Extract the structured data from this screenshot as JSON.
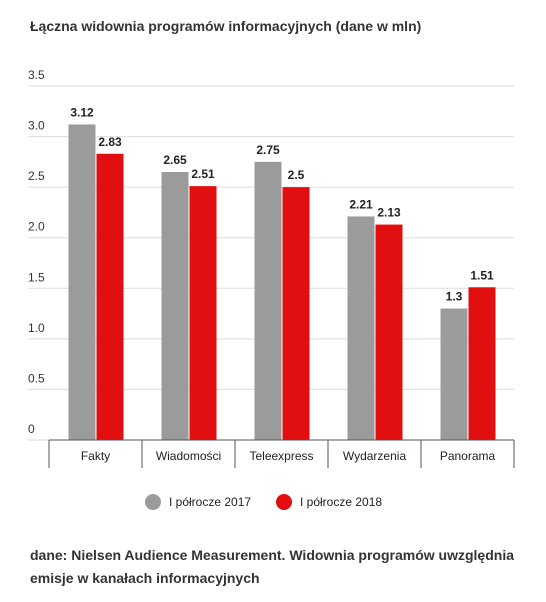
{
  "chart_data": {
    "type": "bar",
    "title": "Łączna widownia programów informacyjnych (dane w mln)",
    "categories": [
      "Fakty",
      "Wiadomości",
      "Teleexpress",
      "Wydarzenia",
      "Panorama"
    ],
    "series": [
      {
        "name": "I półrocze 2017",
        "color": "#9b9b9b",
        "values": [
          3.12,
          2.65,
          2.75,
          2.21,
          1.3
        ]
      },
      {
        "name": "I półrocze 2018",
        "color": "#e10f0f",
        "values": [
          2.83,
          2.51,
          2.5,
          2.13,
          1.51
        ]
      }
    ],
    "ylim": [
      0,
      3.5
    ],
    "yticks": [
      0,
      0.5,
      {
        "value": 1,
        "label": "1.0"
      },
      1.5,
      {
        "value": 2,
        "label": "2.0"
      },
      2.5,
      {
        "value": 3,
        "label": "3.0"
      },
      3.5
    ],
    "grid": true,
    "legend": "bottom",
    "note": "dane: Nielsen Audience Measurement. Widownia programów uwzględnia emisje w kanałach informacyjnych"
  }
}
